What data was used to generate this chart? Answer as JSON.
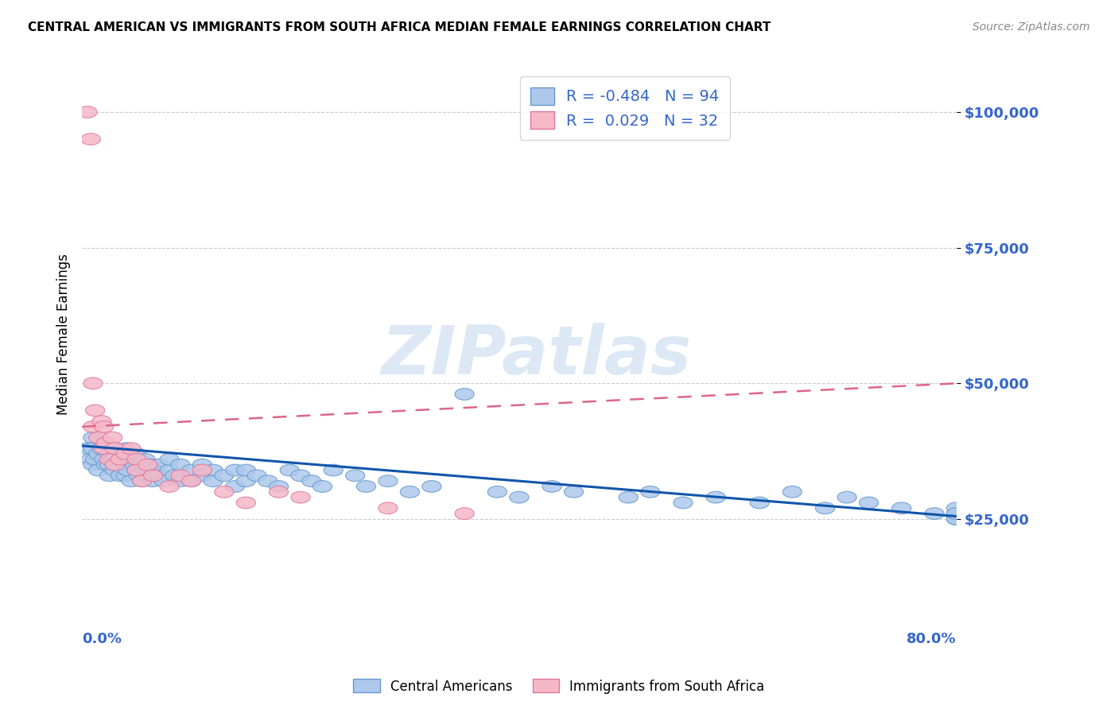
{
  "title": "CENTRAL AMERICAN VS IMMIGRANTS FROM SOUTH AFRICA MEDIAN FEMALE EARNINGS CORRELATION CHART",
  "source": "Source: ZipAtlas.com",
  "ylabel": "Median Female Earnings",
  "yticks": [
    25000,
    50000,
    75000,
    100000
  ],
  "ytick_labels": [
    "$25,000",
    "$50,000",
    "$75,000",
    "$100,000"
  ],
  "xmin": 0.0,
  "xmax": 0.8,
  "ymin": 10000,
  "ymax": 108000,
  "R_blue": -0.484,
  "N_blue": 94,
  "R_pink": 0.029,
  "N_pink": 32,
  "blue_face_color": "#adc8eb",
  "blue_edge_color": "#6699cc",
  "pink_face_color": "#f5b8c8",
  "pink_edge_color": "#dd7799",
  "blue_line_color": "#1155aa",
  "pink_line_color": "#dd6688",
  "axis_label_color": "#3366cc",
  "legend_text_color": "#3366cc",
  "background_color": "#ffffff",
  "watermark_text": "ZIPatlas",
  "watermark_color": "#dde8f5",
  "grid_color": "#cccccc",
  "blue_trend_x0": 0.0,
  "blue_trend_y0": 38500,
  "blue_trend_x1": 0.8,
  "blue_trend_y1": 25500,
  "pink_trend_x0": 0.0,
  "pink_trend_y0": 42000,
  "pink_trend_x1": 0.8,
  "pink_trend_y1": 50000,
  "blue_x": [
    0.005,
    0.008,
    0.01,
    0.01,
    0.01,
    0.012,
    0.015,
    0.015,
    0.018,
    0.02,
    0.02,
    0.022,
    0.025,
    0.025,
    0.025,
    0.028,
    0.03,
    0.03,
    0.03,
    0.032,
    0.035,
    0.035,
    0.038,
    0.04,
    0.04,
    0.04,
    0.042,
    0.045,
    0.045,
    0.048,
    0.05,
    0.05,
    0.052,
    0.055,
    0.055,
    0.058,
    0.06,
    0.06,
    0.062,
    0.065,
    0.065,
    0.07,
    0.07,
    0.075,
    0.08,
    0.08,
    0.085,
    0.09,
    0.09,
    0.1,
    0.1,
    0.11,
    0.11,
    0.12,
    0.12,
    0.13,
    0.14,
    0.14,
    0.15,
    0.15,
    0.16,
    0.17,
    0.18,
    0.19,
    0.2,
    0.21,
    0.22,
    0.23,
    0.25,
    0.26,
    0.28,
    0.3,
    0.32,
    0.35,
    0.38,
    0.4,
    0.43,
    0.45,
    0.5,
    0.52,
    0.55,
    0.58,
    0.62,
    0.65,
    0.68,
    0.7,
    0.72,
    0.75,
    0.78,
    0.8,
    0.8,
    0.8,
    0.8,
    0.8
  ],
  "blue_y": [
    38000,
    36000,
    40000,
    35000,
    38000,
    36000,
    37000,
    34000,
    38000,
    36000,
    39000,
    35000,
    37000,
    35000,
    33000,
    36000,
    38000,
    34000,
    36000,
    35000,
    33000,
    36000,
    37000,
    35000,
    33000,
    38000,
    34000,
    36000,
    32000,
    35000,
    34000,
    37000,
    33000,
    35000,
    32000,
    36000,
    34000,
    33000,
    35000,
    32000,
    34000,
    33000,
    35000,
    32000,
    34000,
    36000,
    33000,
    32000,
    35000,
    34000,
    32000,
    33000,
    35000,
    32000,
    34000,
    33000,
    31000,
    34000,
    32000,
    34000,
    33000,
    32000,
    31000,
    34000,
    33000,
    32000,
    31000,
    34000,
    33000,
    31000,
    32000,
    30000,
    31000,
    48000,
    30000,
    29000,
    31000,
    30000,
    29000,
    30000,
    28000,
    29000,
    28000,
    30000,
    27000,
    29000,
    28000,
    27000,
    26000,
    25000,
    26000,
    27000,
    25000,
    26000
  ],
  "pink_x": [
    0.005,
    0.008,
    0.01,
    0.01,
    0.012,
    0.015,
    0.018,
    0.02,
    0.02,
    0.022,
    0.025,
    0.028,
    0.03,
    0.03,
    0.035,
    0.04,
    0.045,
    0.05,
    0.05,
    0.055,
    0.06,
    0.065,
    0.08,
    0.09,
    0.1,
    0.11,
    0.13,
    0.15,
    0.18,
    0.2,
    0.28,
    0.35
  ],
  "pink_y": [
    100000,
    95000,
    50000,
    42000,
    45000,
    40000,
    43000,
    38000,
    42000,
    39000,
    36000,
    40000,
    38000,
    35000,
    36000,
    37000,
    38000,
    36000,
    34000,
    32000,
    35000,
    33000,
    31000,
    33000,
    32000,
    34000,
    30000,
    28000,
    30000,
    29000,
    27000,
    26000
  ]
}
